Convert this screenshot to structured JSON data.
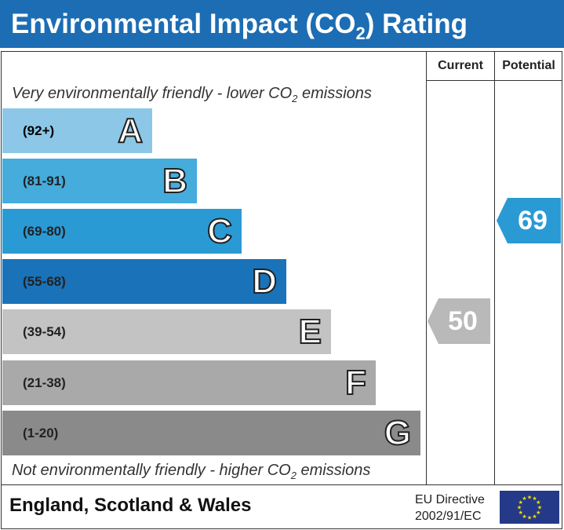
{
  "chart_data": {
    "type": "bar",
    "title": "Environmental Impact (CO2) Rating",
    "column_headers": [
      "Current",
      "Potential"
    ],
    "top_note": "Very environmentally friendly - lower CO2 emissions",
    "bottom_note": "Not environmentally friendly - higher CO2 emissions",
    "bands": [
      {
        "letter": "A",
        "range": "(92+)",
        "color": "#8cc7e7"
      },
      {
        "letter": "B",
        "range": "(81-91)",
        "color": "#45acdc"
      },
      {
        "letter": "C",
        "range": "(69-80)",
        "color": "#2a9ad4"
      },
      {
        "letter": "D",
        "range": "(55-68)",
        "color": "#1a72b8"
      },
      {
        "letter": "E",
        "range": "(39-54)",
        "color": "#c3c3c3"
      },
      {
        "letter": "F",
        "range": "(21-38)",
        "color": "#a9a9a9"
      },
      {
        "letter": "G",
        "range": "(1-20)",
        "color": "#8a8a8a"
      }
    ],
    "current": {
      "value": 50,
      "band": "E",
      "color": "#b9b9b9"
    },
    "potential": {
      "value": 69,
      "band": "C",
      "color": "#2a9ad4"
    }
  },
  "header": {
    "title_pre": "Environmental Impact (CO",
    "title_sub": "2",
    "title_post": ") Rating"
  },
  "notes": {
    "top_pre": "Very environmentally friendly - lower CO",
    "bottom_pre": "Not environmentally friendly - higher CO",
    "sub": "2",
    "post": " emissions"
  },
  "footer": {
    "region": "England, Scotland & Wales",
    "directive_line1": "EU Directive",
    "directive_line2": "2002/91/EC",
    "flag": "eu-flag"
  }
}
